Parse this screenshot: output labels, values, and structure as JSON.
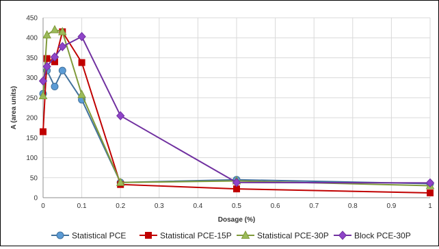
{
  "chart_data": {
    "type": "line",
    "xlabel": "Dosage (%)",
    "ylabel": "A (area units)",
    "xlim": [
      0,
      1
    ],
    "ylim": [
      0,
      450
    ],
    "xticks": [
      "0",
      "0.1",
      "0.2",
      "0.3",
      "0.4",
      "0.5",
      "0.6",
      "0.7",
      "0.8",
      "0.9",
      "1"
    ],
    "yticks": [
      "0",
      "50",
      "100",
      "150",
      "200",
      "250",
      "300",
      "350",
      "400",
      "450"
    ],
    "grid": true,
    "legend_position": "bottom",
    "series": [
      {
        "name": "Statistical PCE",
        "color": "#41719C",
        "fill": "#5B9BD5",
        "marker": "circle",
        "x": [
          0,
          0.01,
          0.03,
          0.05,
          0.1,
          0.2,
          0.5,
          1
        ],
        "y": [
          260,
          318,
          278,
          318,
          245,
          38,
          45,
          35
        ]
      },
      {
        "name": "Statistical PCE-15P",
        "color": "#C00000",
        "fill": "#C00000",
        "marker": "square",
        "x": [
          0,
          0.01,
          0.03,
          0.05,
          0.1,
          0.2,
          0.5,
          1
        ],
        "y": [
          165,
          348,
          340,
          415,
          338,
          33,
          22,
          12
        ]
      },
      {
        "name": "Statistical PCE-30P",
        "color": "#7F9A3A",
        "fill": "#9BBB59",
        "marker": "triangle",
        "x": [
          0,
          0.01,
          0.03,
          0.05,
          0.1,
          0.2,
          0.5,
          1
        ],
        "y": [
          255,
          407,
          420,
          415,
          258,
          38,
          42,
          30
        ]
      },
      {
        "name": "Block PCE-30P",
        "color": "#7030A0",
        "fill": "#8E44C8",
        "marker": "diamond",
        "x": [
          0,
          0.01,
          0.03,
          0.05,
          0.1,
          0.2,
          0.5,
          1
        ],
        "y": [
          292,
          328,
          352,
          378,
          403,
          205,
          38,
          37
        ]
      }
    ]
  }
}
